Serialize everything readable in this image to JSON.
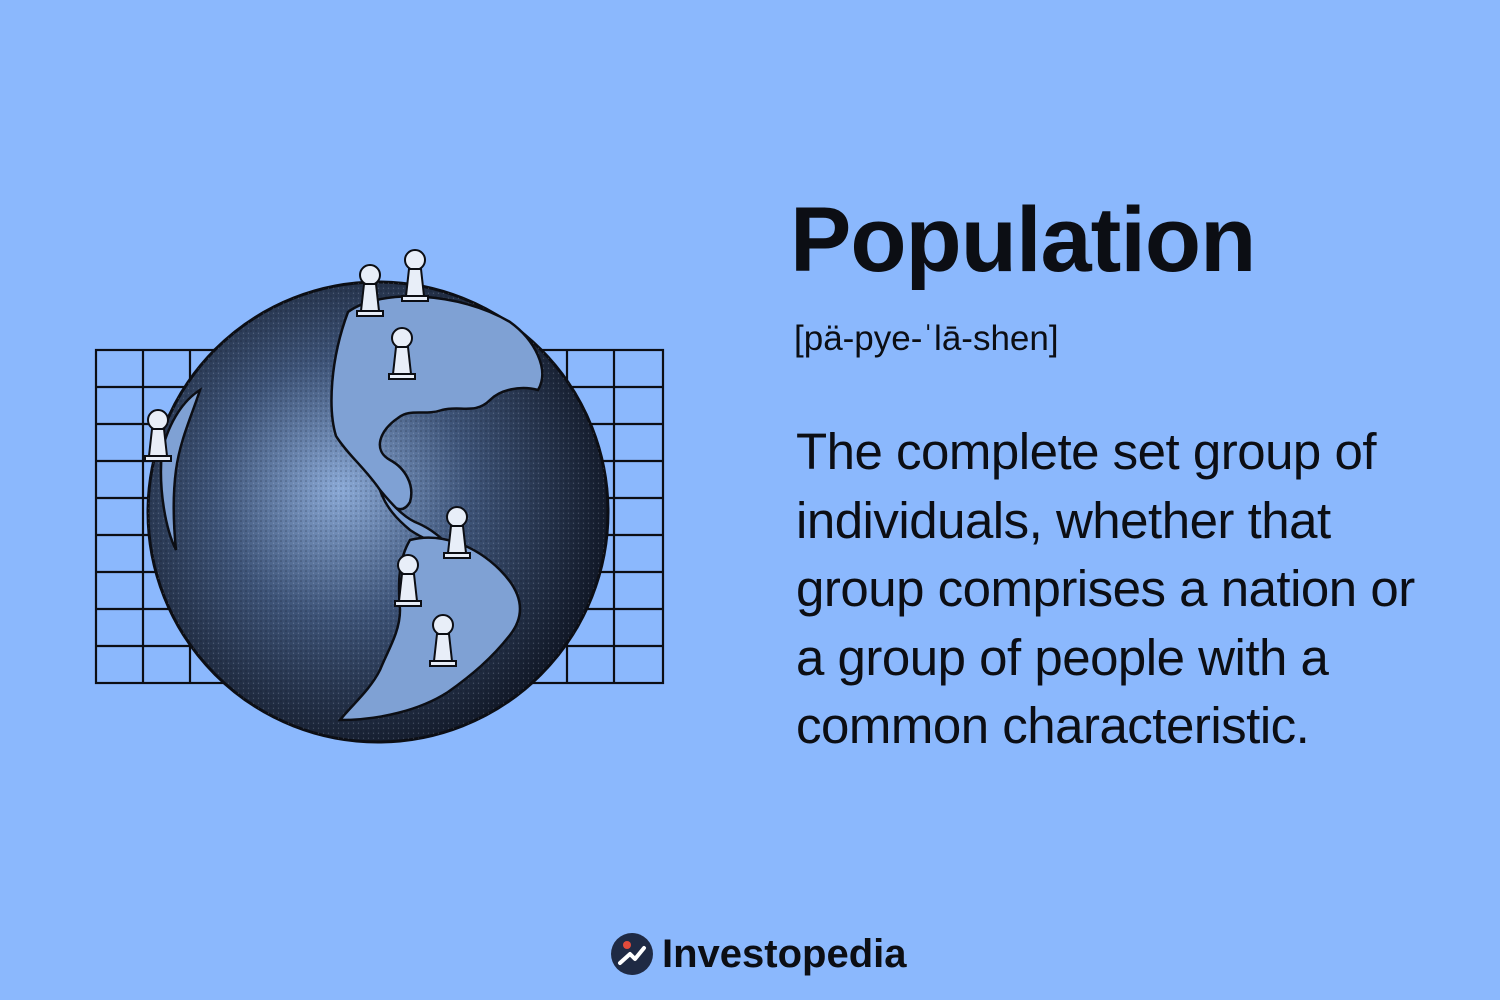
{
  "term": {
    "title": "Population",
    "pronunciation": "[pä-pye-ˈlā-shen]",
    "definition": "The complete set group of individuals, whether that group comprises a nation or a group of people with a common characteristic."
  },
  "brand": {
    "name": "Investopedia",
    "logo_icon": "investopedia-logo-icon"
  },
  "illustration": {
    "icon": "globe-with-pawns-icon"
  },
  "colors": {
    "background": "#8bb8fd",
    "text": "#0c0e14",
    "logo_accent": "#e24b3b"
  }
}
